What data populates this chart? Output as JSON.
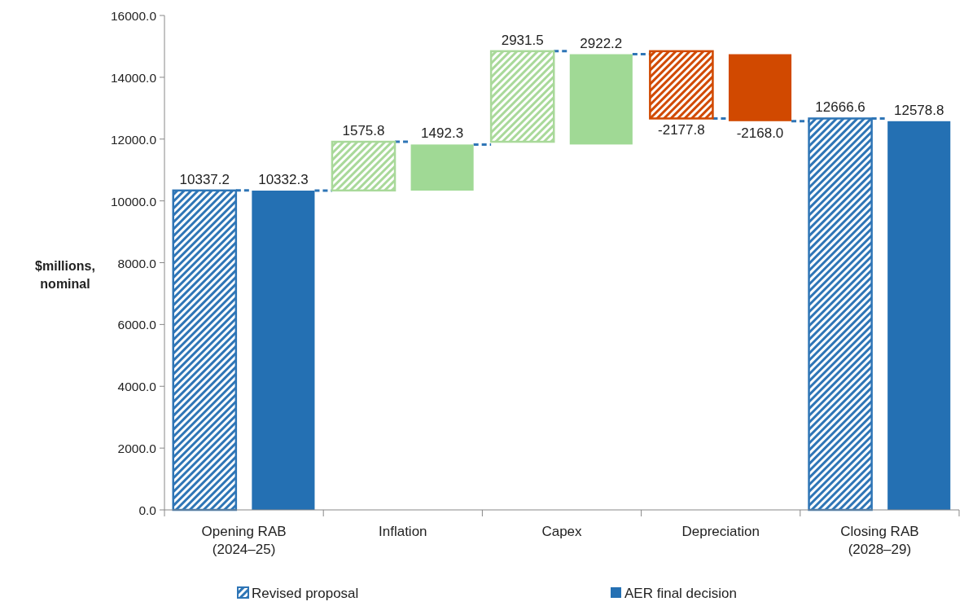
{
  "chart_data": {
    "type": "bar",
    "ylabel": "$millions, nominal",
    "categories": [
      "Opening RAB (2024–25)",
      "Inflation",
      "Capex",
      "Depreciation",
      "Closing RAB (2028–29)"
    ],
    "series": [
      {
        "name": "Revised proposal",
        "color": "#2e75b6",
        "colors": [
          "#2e75b6",
          "#a9d99a",
          "#a9d99a",
          "#d14900",
          "#2e75b6"
        ],
        "values": [
          10337.2,
          1575.8,
          2931.5,
          -2177.8,
          12666.6
        ],
        "base": [
          0,
          10337.2,
          11913.0,
          14844.5,
          0
        ],
        "value_labels": [
          "10337.2",
          "1575.8",
          "2931.5",
          "-2177.8",
          "12666.6"
        ]
      },
      {
        "name": "AER final decision",
        "color": "#2470b3",
        "colors": [
          "#2470b3",
          "#a0d995",
          "#a0d995",
          "#d14900",
          "#2470b3"
        ],
        "values": [
          10332.3,
          1492.3,
          2922.2,
          -2168.0,
          12578.8
        ],
        "base": [
          0,
          10332.3,
          11824.6,
          14746.8,
          0
        ],
        "value_labels": [
          "10332.3",
          "1492.3",
          "2922.2",
          "-2168.0",
          "12578.8"
        ]
      }
    ],
    "ylim": [
      0,
      16000
    ],
    "yticks": [
      {
        "value": 0,
        "label": "0.0"
      },
      {
        "value": 2000,
        "label": "2000.0"
      },
      {
        "value": 4000,
        "label": "4000.0"
      },
      {
        "value": 6000,
        "label": "6000.0"
      },
      {
        "value": 8000,
        "label": "8000.0"
      },
      {
        "value": 10000,
        "label": "10000.0"
      },
      {
        "value": 12000,
        "label": "12000.0"
      },
      {
        "value": 14000,
        "label": "14000.0"
      },
      {
        "value": 16000,
        "label": "16000.0"
      }
    ],
    "grid": false,
    "legend": "bottom"
  }
}
